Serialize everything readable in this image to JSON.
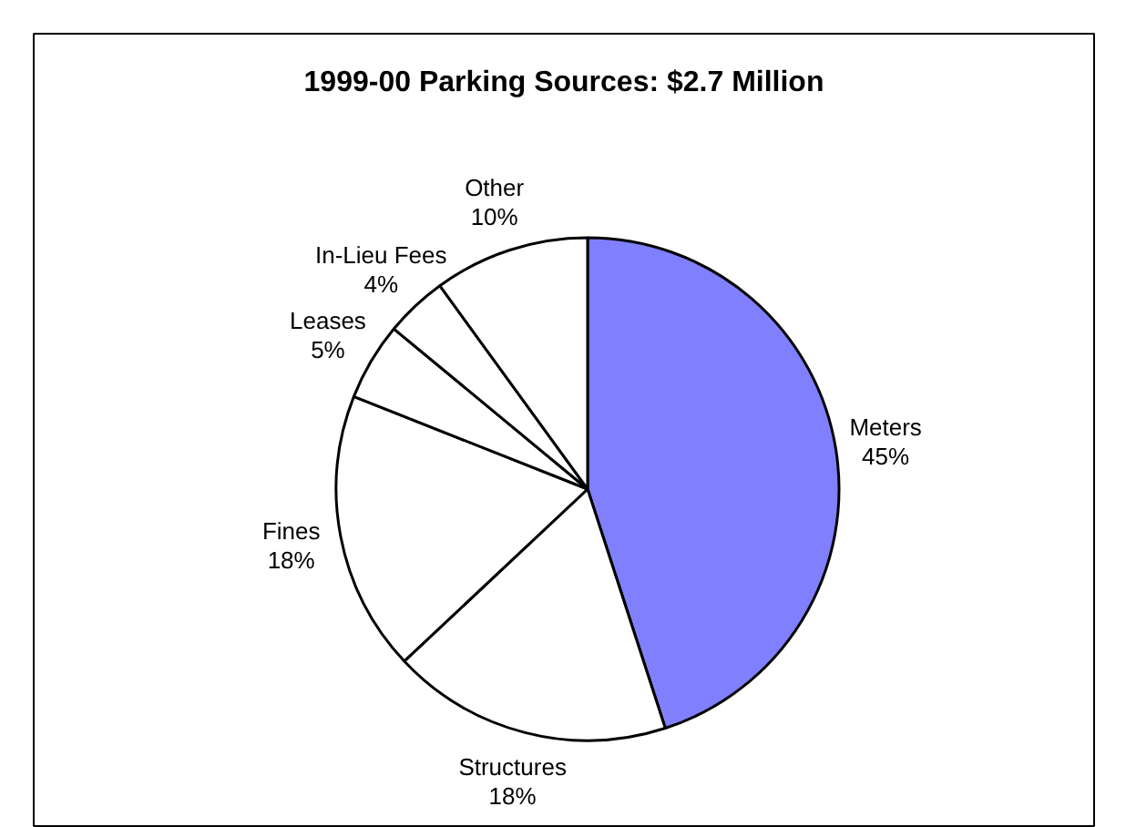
{
  "chart_data": {
    "type": "pie",
    "title": "1999-00 Parking Sources: $2.7 Million",
    "categories": [
      "Meters",
      "Structures",
      "Fines",
      "Leases",
      "In-Lieu Fees",
      "Other"
    ],
    "values": [
      45,
      18,
      18,
      5,
      4,
      10
    ],
    "value_labels": [
      "45%",
      "18%",
      "18%",
      "5%",
      "4%",
      "10%"
    ],
    "colors": [
      "#8080ff",
      "#ffffff",
      "#ffffff",
      "#ffffff",
      "#ffffff",
      "#ffffff"
    ]
  }
}
